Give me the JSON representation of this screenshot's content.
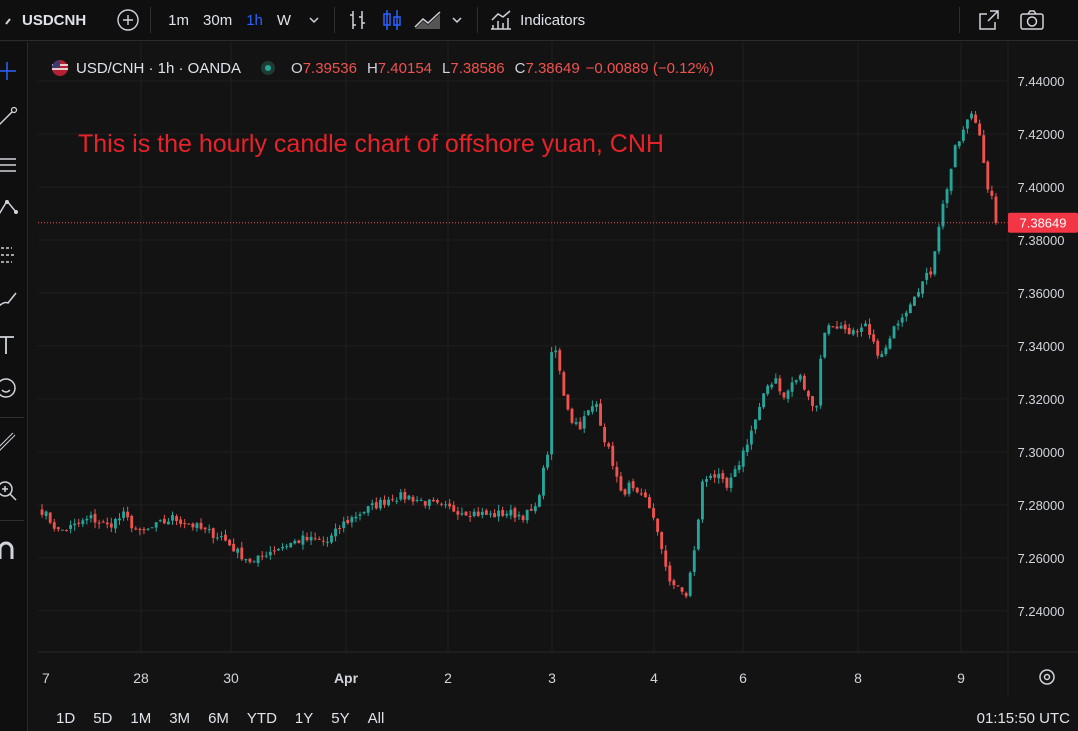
{
  "toolbar": {
    "symbol": "USDCNH",
    "intervals": [
      "1m",
      "30m",
      "1h",
      "W"
    ],
    "active_interval": "1h",
    "indicators_label": "Indicators",
    "icons": [
      "plus-circle-icon",
      "chevron-down-icon",
      "bar-style-icon",
      "candle-style-icon",
      "area-style-icon",
      "chevron-down-icon",
      "indicators-icon",
      "fullscreen-icon",
      "camera-icon"
    ]
  },
  "left_toolbar": {
    "icons": [
      "crosshair-icon",
      "trendline-icon",
      "fib-icon",
      "pattern-icon",
      "forecast-icon",
      "brush-icon",
      "text-icon",
      "emoji-icon",
      "ruler-icon",
      "zoom-icon",
      "magnet-icon"
    ]
  },
  "legend": {
    "title": "USD/CNH · 1h · OANDA",
    "o_label": "O",
    "o_value": "7.39536",
    "h_label": "H",
    "h_value": "7.40154",
    "l_label": "L",
    "l_value": "7.38586",
    "c_label": "C",
    "c_value": "7.38649",
    "change": "−0.00889 (−0.12%)"
  },
  "annotation": "This is the hourly candle chart of offshore yuan, CNH",
  "bottom_bar": {
    "ranges": [
      "1D",
      "5D",
      "1M",
      "3M",
      "6M",
      "YTD",
      "1Y",
      "5Y",
      "All"
    ],
    "clock": "01:15:50 UTC"
  },
  "colors": {
    "up": "#26a69a",
    "down": "#ef5350",
    "background": "#131313",
    "grid": "#1f1f1f",
    "price_label_bg": "#f23645",
    "annotation": "#e8222a",
    "active_interval": "#2962ff"
  },
  "chart_data": {
    "type": "candlestick",
    "title": "USD/CNH · 1h · OANDA",
    "ylim": [
      7.228,
      7.452
    ],
    "y_ticks": [
      "7.24000",
      "7.26000",
      "7.28000",
      "7.30000",
      "7.32000",
      "7.34000",
      "7.36000",
      "7.38000",
      "7.40000",
      "7.42000",
      "7.44000"
    ],
    "x_ticks": [
      "7",
      "28",
      "30",
      "Apr",
      "2",
      "3",
      "4",
      "6",
      "8",
      "9"
    ],
    "last_price": "7.38649",
    "grid": true,
    "path_points": [
      [
        0,
        7.278
      ],
      [
        4,
        7.27
      ],
      [
        8,
        7.272
      ],
      [
        12,
        7.275
      ],
      [
        16,
        7.272
      ],
      [
        20,
        7.276
      ],
      [
        24,
        7.269
      ],
      [
        28,
        7.272
      ],
      [
        32,
        7.275
      ],
      [
        36,
        7.273
      ],
      [
        40,
        7.27
      ],
      [
        44,
        7.268
      ],
      [
        48,
        7.262
      ],
      [
        52,
        7.258
      ],
      [
        55,
        7.262
      ],
      [
        60,
        7.265
      ],
      [
        64,
        7.267
      ],
      [
        70,
        7.266
      ],
      [
        74,
        7.273
      ],
      [
        78,
        7.277
      ],
      [
        82,
        7.28
      ],
      [
        86,
        7.283
      ],
      [
        90,
        7.283
      ],
      [
        94,
        7.281
      ],
      [
        98,
        7.279
      ],
      [
        102,
        7.278
      ],
      [
        106,
        7.277
      ],
      [
        110,
        7.276
      ],
      [
        114,
        7.277
      ],
      [
        118,
        7.276
      ],
      [
        121,
        7.278
      ],
      [
        124,
        7.3
      ],
      [
        125,
        7.336
      ],
      [
        126,
        7.338
      ],
      [
        128,
        7.322
      ],
      [
        130,
        7.312
      ],
      [
        132,
        7.31
      ],
      [
        134,
        7.315
      ],
      [
        136,
        7.318
      ],
      [
        138,
        7.305
      ],
      [
        140,
        7.296
      ],
      [
        142,
        7.284
      ],
      [
        144,
        7.287
      ],
      [
        146,
        7.283
      ],
      [
        148,
        7.282
      ],
      [
        150,
        7.276
      ],
      [
        152,
        7.262
      ],
      [
        154,
        7.252
      ],
      [
        156,
        7.248
      ],
      [
        158,
        7.246
      ],
      [
        160,
        7.262
      ],
      [
        162,
        7.288
      ],
      [
        164,
        7.292
      ],
      [
        166,
        7.29
      ],
      [
        168,
        7.286
      ],
      [
        170,
        7.292
      ],
      [
        172,
        7.3
      ],
      [
        174,
        7.308
      ],
      [
        176,
        7.316
      ],
      [
        178,
        7.325
      ],
      [
        180,
        7.328
      ],
      [
        182,
        7.32
      ],
      [
        184,
        7.326
      ],
      [
        186,
        7.328
      ],
      [
        188,
        7.32
      ],
      [
        190,
        7.318
      ],
      [
        191,
        7.335
      ],
      [
        192,
        7.346
      ],
      [
        194,
        7.348
      ],
      [
        196,
        7.347
      ],
      [
        198,
        7.346
      ],
      [
        200,
        7.344
      ],
      [
        202,
        7.347
      ],
      [
        204,
        7.34
      ],
      [
        206,
        7.336
      ],
      [
        208,
        7.342
      ],
      [
        210,
        7.35
      ],
      [
        212,
        7.354
      ],
      [
        214,
        7.36
      ],
      [
        216,
        7.364
      ],
      [
        218,
        7.368
      ],
      [
        220,
        7.386
      ],
      [
        222,
        7.4
      ],
      [
        224,
        7.414
      ],
      [
        226,
        7.421
      ],
      [
        228,
        7.428
      ],
      [
        230,
        7.421
      ],
      [
        231,
        7.41
      ],
      [
        232,
        7.398
      ],
      [
        233,
        7.395
      ],
      [
        234,
        7.3865
      ]
    ]
  }
}
